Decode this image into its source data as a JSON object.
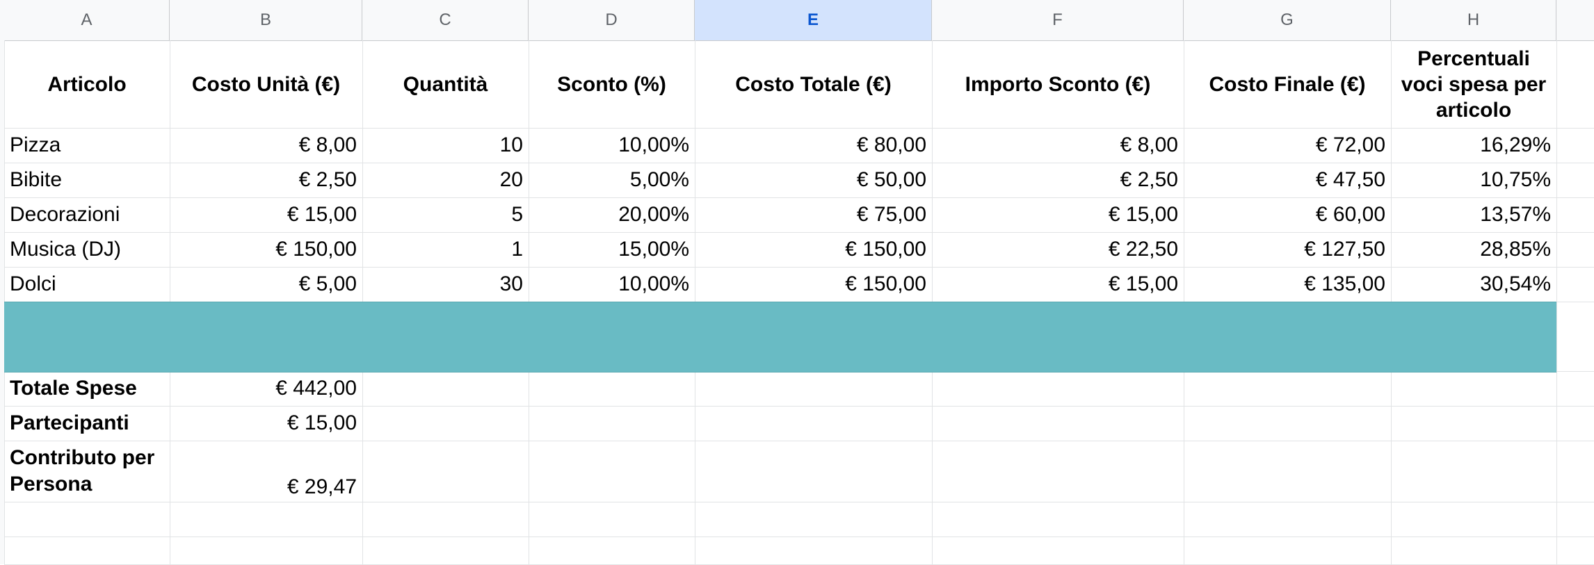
{
  "columns": [
    {
      "letter": "A",
      "selected": false
    },
    {
      "letter": "B",
      "selected": false
    },
    {
      "letter": "C",
      "selected": false
    },
    {
      "letter": "D",
      "selected": false
    },
    {
      "letter": "E",
      "selected": true
    },
    {
      "letter": "F",
      "selected": false
    },
    {
      "letter": "G",
      "selected": false
    },
    {
      "letter": "H",
      "selected": false
    }
  ],
  "headers": [
    "Articolo",
    "Costo Unità (€)",
    "Quantità",
    "Sconto (%)",
    "Costo Totale (€)",
    "Importo Sconto (€)",
    "Costo Finale (€)",
    "Percentuali voci spesa per articolo"
  ],
  "rows": [
    [
      "Pizza",
      "€ 8,00",
      "10",
      "10,00%",
      "€ 80,00",
      "€ 8,00",
      "€ 72,00",
      "16,29%"
    ],
    [
      "Bibite",
      "€ 2,50",
      "20",
      "5,00%",
      "€ 50,00",
      "€ 2,50",
      "€ 47,50",
      "10,75%"
    ],
    [
      "Decorazioni",
      "€ 15,00",
      "5",
      "20,00%",
      "€ 75,00",
      "€ 15,00",
      "€ 60,00",
      "13,57%"
    ],
    [
      "Musica (DJ)",
      "€ 150,00",
      "1",
      "15,00%",
      "€ 150,00",
      "€ 22,50",
      "€ 127,50",
      "28,85%"
    ],
    [
      "Dolci",
      "€ 5,00",
      "30",
      "10,00%",
      "€ 150,00",
      "€ 15,00",
      "€ 135,00",
      "30,54%"
    ]
  ],
  "band_color": "#69bbc4",
  "summary": [
    {
      "label": "Totale Spese",
      "value": "€ 442,00"
    },
    {
      "label": "Partecipanti",
      "value": "€ 15,00"
    },
    {
      "label": "Contributo per Persona",
      "value": "€ 29,47"
    }
  ]
}
